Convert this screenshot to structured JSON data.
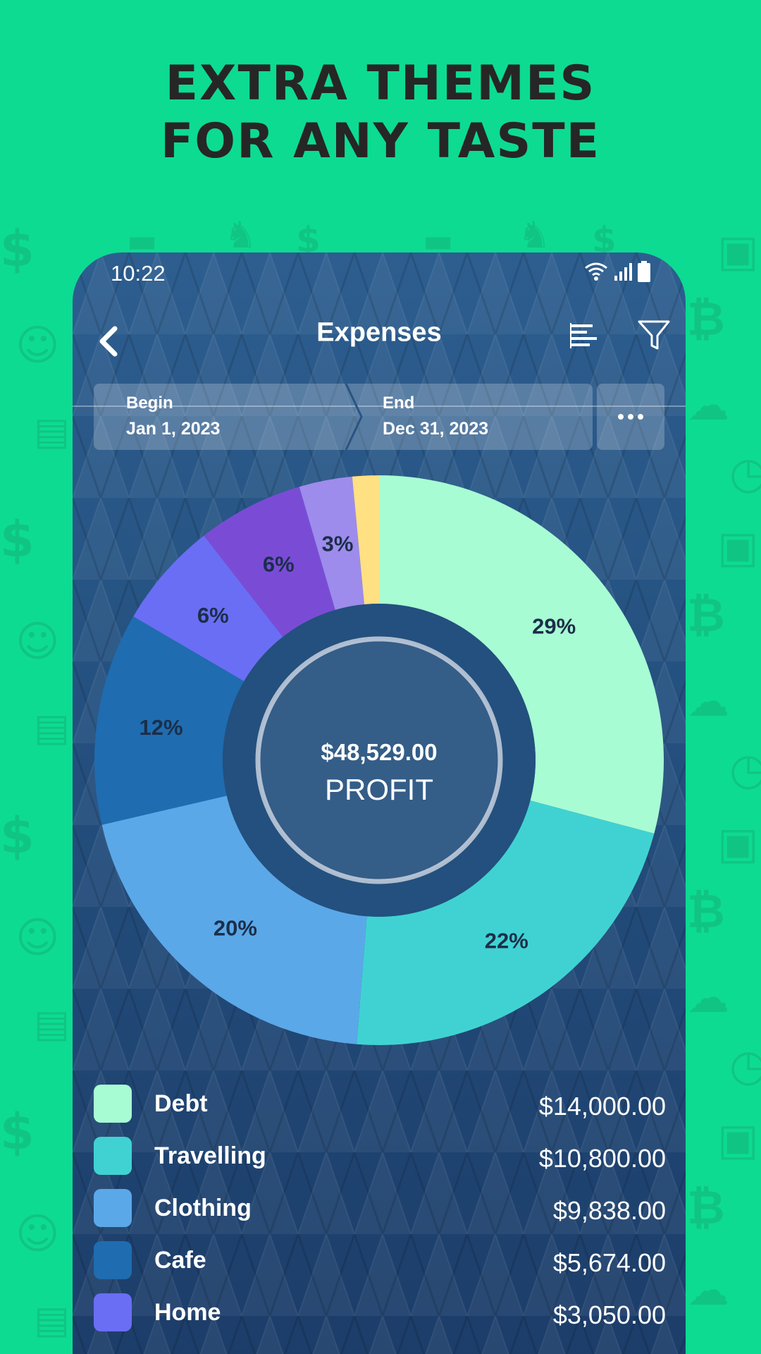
{
  "headline": {
    "line1": "EXTRA THEMES",
    "line2": "FOR ANY TASTE"
  },
  "status_bar": {
    "time": "10:22",
    "icons": [
      "wifi-icon",
      "signal-icon",
      "battery-icon"
    ]
  },
  "app_bar": {
    "title": "Expenses",
    "back_icon": "chevron-left-icon",
    "sort_icon": "bar-sort-icon",
    "filter_icon": "funnel-icon"
  },
  "date_range": {
    "begin_label": "Begin",
    "begin_value": "Jan 1, 2023",
    "end_label": "End",
    "end_value": "Dec 31, 2023",
    "more_icon": "more-horizontal-icon"
  },
  "center": {
    "amount": "$48,529.00",
    "label": "PROFIT"
  },
  "chart_data": {
    "type": "pie",
    "style": "donut",
    "slices": [
      {
        "label": "Debt",
        "percent": 29,
        "display": "29%",
        "color": "#a8fcd4"
      },
      {
        "label": "Travelling",
        "percent": 22,
        "display": "22%",
        "color": "#40d2d2"
      },
      {
        "label": "Clothing",
        "percent": 20,
        "display": "20%",
        "color": "#5ba8e8"
      },
      {
        "label": "Cafe",
        "percent": 12,
        "display": "12%",
        "color": "#1f6cb0"
      },
      {
        "label": "Home",
        "percent": 6,
        "display": "6%",
        "color": "#6a6ef4"
      },
      {
        "label": "",
        "percent": 6,
        "display": "6%",
        "color": "#7a4cd6"
      },
      {
        "label": "",
        "percent": 3,
        "display": "3%",
        "color": "#9d8cec"
      },
      {
        "label": "",
        "percent": 1.5,
        "display": "",
        "color": "#ffe082"
      }
    ]
  },
  "legend": [
    {
      "name": "Debt",
      "amount": "$14,000.00",
      "color": "#a8fcd4"
    },
    {
      "name": "Travelling",
      "amount": "$10,800.00",
      "color": "#40d2d2"
    },
    {
      "name": "Clothing",
      "amount": "$9,838.00",
      "color": "#5ba8e8"
    },
    {
      "name": "Cafe",
      "amount": "$5,674.00",
      "color": "#1f6cb0"
    },
    {
      "name": "Home",
      "amount": "$3,050.00",
      "color": "#6a6ef4"
    }
  ],
  "colors": {
    "background": "#0ddb92",
    "phone_top": "#2d5e8f",
    "phone_bottom": "#1c3c68"
  }
}
